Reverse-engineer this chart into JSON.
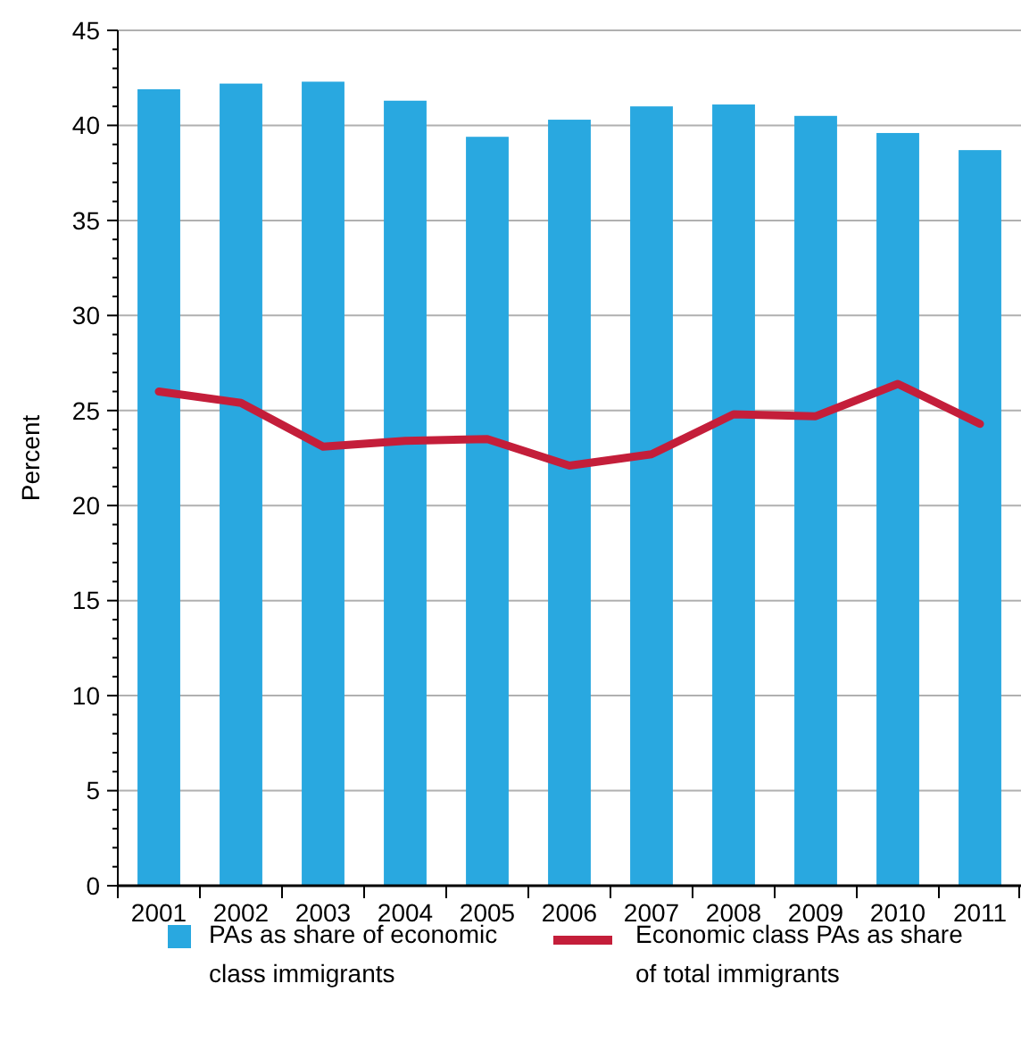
{
  "chart_data": {
    "type": "bar",
    "ylabel": "Percent",
    "categories": [
      "2001",
      "2002",
      "2003",
      "2004",
      "2005",
      "2006",
      "2007",
      "2008",
      "2009",
      "2010",
      "2011"
    ],
    "series": [
      {
        "name": "PAs as share of economic class immigrants",
        "color": "#29a8e0",
        "values": [
          41.9,
          42.2,
          42.3,
          41.3,
          39.4,
          40.3,
          41.0,
          41.1,
          40.5,
          39.6,
          38.7
        ]
      },
      {
        "name": "Economic class PAs as share of total immigrants",
        "type": "line",
        "color": "#c41e3a",
        "values": [
          26.0,
          25.4,
          23.1,
          23.4,
          23.5,
          22.1,
          22.7,
          24.8,
          24.7,
          26.4,
          24.3
        ]
      }
    ],
    "ylim": [
      0,
      45
    ],
    "yticks": [
      0,
      {
        "value": 1,
        "label": null
      },
      {
        "value": 2,
        "label": null
      },
      {
        "value": 3,
        "label": null
      },
      {
        "value": 4,
        "label": null
      },
      5,
      {
        "value": 6,
        "label": null
      },
      {
        "value": 7,
        "label": null
      },
      {
        "value": 8,
        "label": null
      },
      {
        "value": 9,
        "label": null
      },
      10,
      {
        "value": 11,
        "label": null
      },
      {
        "value": 12,
        "label": null
      },
      {
        "value": 13,
        "label": null
      },
      {
        "value": 14,
        "label": null
      },
      15,
      {
        "value": 16,
        "label": null
      },
      {
        "value": 17,
        "label": null
      },
      {
        "value": 18,
        "label": null
      },
      {
        "value": 19,
        "label": null
      },
      20,
      {
        "value": 21,
        "label": null
      },
      {
        "value": 22,
        "label": null
      },
      {
        "value": 23,
        "label": null
      },
      {
        "value": 24,
        "label": null
      },
      25,
      {
        "value": 26,
        "label": null
      },
      {
        "value": 27,
        "label": null
      },
      {
        "value": 28,
        "label": null
      },
      {
        "value": 29,
        "label": null
      },
      30,
      {
        "value": 31,
        "label": null
      },
      {
        "value": 32,
        "label": null
      },
      {
        "value": 33,
        "label": null
      },
      {
        "value": 34,
        "label": null
      },
      35,
      {
        "value": 36,
        "label": null
      },
      {
        "value": 37,
        "label": null
      },
      {
        "value": 38,
        "label": null
      },
      {
        "value": 39,
        "label": null
      },
      40,
      {
        "value": 41,
        "label": null
      },
      {
        "value": 42,
        "label": null
      },
      {
        "value": 43,
        "label": null
      },
      {
        "value": 44,
        "label": null
      },
      45
    ],
    "grid": "y",
    "legend": "bottom",
    "marker": "none",
    "line_style": "solid"
  }
}
